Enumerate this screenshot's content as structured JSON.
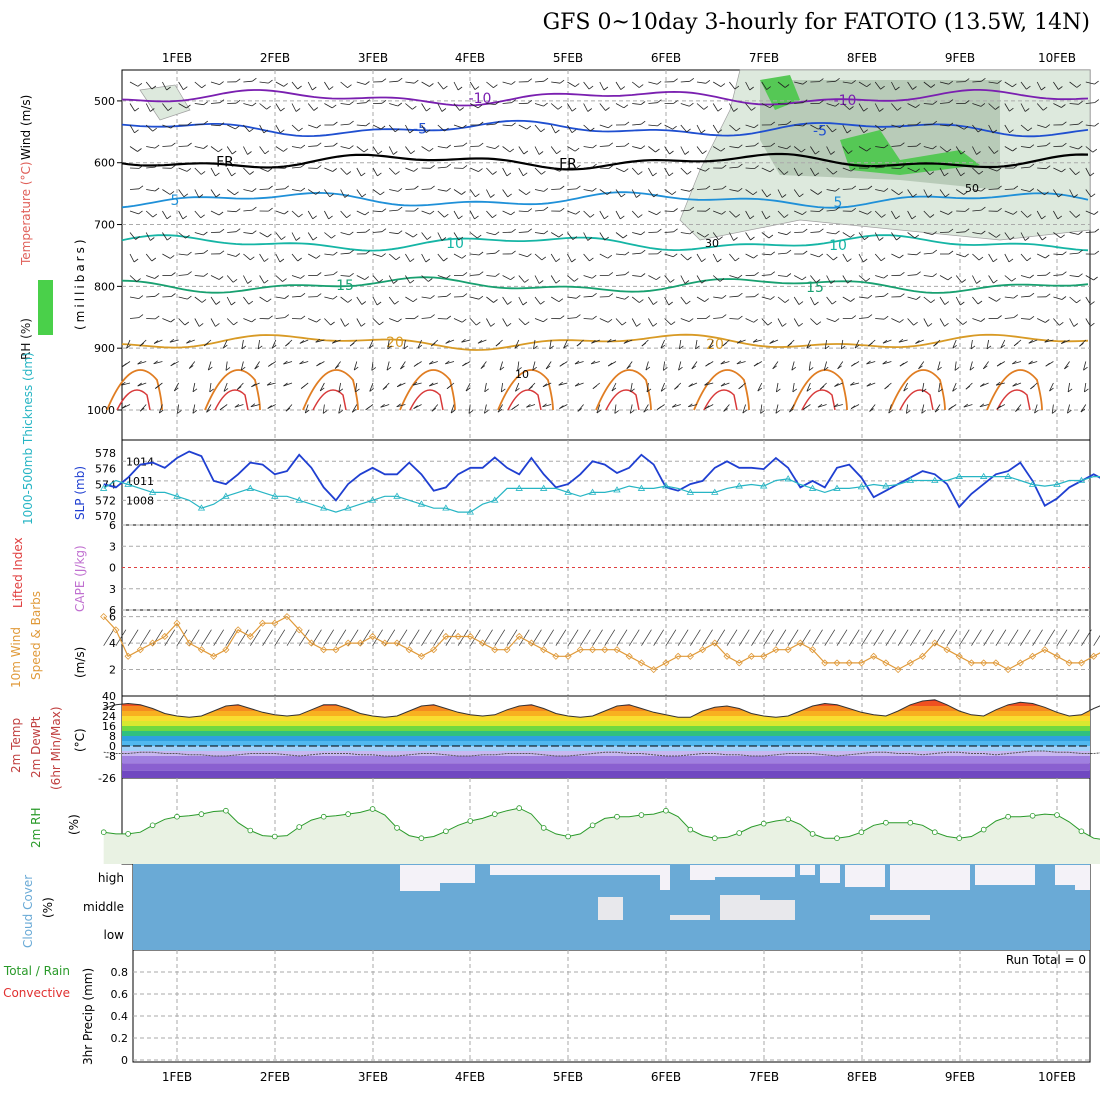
{
  "title": "GFS 0~10day 3-hourly for FATOTO (13.5W, 14N)",
  "dates": [
    "1FEB",
    "2FEB",
    "3FEB",
    "4FEB",
    "5FEB",
    "6FEB",
    "7FEB",
    "8FEB",
    "9FEB",
    "10FEB"
  ],
  "colors": {
    "axis": "#000000",
    "grid": "#aaaaaa",
    "slp": "#1f3fd1",
    "thickness": "#27b5c4",
    "wind10": "#e09a3a",
    "rh2m": "#2a9a2a",
    "cloud": "#6aaad6",
    "zero_li": "#e04040",
    "precip_conv": "#e03030"
  },
  "chart_data": [
    {
      "id": "upper-air",
      "type": "contour",
      "ylabel_parts": [
        "Wind (m/s)",
        "Temperature (°C)",
        "RH (%)"
      ],
      "ylabel_unit": "(millibars)",
      "y_ticks": [
        500,
        600,
        700,
        800,
        900,
        1000
      ],
      "ylim": [
        450,
        1000
      ],
      "isotherm_labels": [
        {
          "text": "-10",
          "level": 495,
          "color": "#7a1fb0"
        },
        {
          "text": "-5",
          "level": 545,
          "color": "#1f4fd0"
        },
        {
          "text": "FR",
          "level": 598,
          "color": "#000000"
        },
        {
          "text": "5",
          "level": 660,
          "color": "#1f90d8"
        },
        {
          "text": "10",
          "level": 730,
          "color": "#15b5a5"
        },
        {
          "text": "15",
          "level": 798,
          "color": "#18a070"
        },
        {
          "text": "20",
          "level": 890,
          "color": "#d89a25"
        }
      ],
      "rh_labels": [
        "30",
        "50",
        "10"
      ]
    },
    {
      "id": "slp-thickness",
      "type": "line",
      "ylabel_left": "1000-500mb Thickness (dm)",
      "ylabel_right": "SLP (mb)",
      "thickness_ticks": [
        570,
        572,
        574,
        576,
        578
      ],
      "slp_ticks": [
        1008,
        1011,
        1014
      ],
      "thickness_range": [
        569.5,
        579
      ],
      "slp_range": [
        1005,
        1016.5
      ],
      "series": [
        {
          "name": "SLP (mb)",
          "values": [
            1010.5,
            1010,
            1011.5,
            1013.5,
            1013.8,
            1013,
            1014.5,
            1015.5,
            1014.8,
            1011,
            1010.5,
            1012,
            1013.8,
            1013.5,
            1012,
            1012.5,
            1015,
            1013,
            1010,
            1008,
            1010.5,
            1012,
            1013,
            1012,
            1012,
            1013.8,
            1012,
            1009.5,
            1010,
            1012,
            1013,
            1013,
            1014.6,
            1013,
            1012,
            1014.5,
            1012,
            1010,
            1010.5,
            1012,
            1014,
            1013.5,
            1012.2,
            1013,
            1015,
            1013.5,
            1010,
            1009.5,
            1010.5,
            1011,
            1013,
            1014,
            1013,
            1013,
            1012.8,
            1014.5,
            1013,
            1010,
            1011,
            1010,
            1013,
            1013.5,
            1011.5,
            1008.5,
            1009.5,
            1010.5,
            1011.5,
            1012.5,
            1012,
            1010.5,
            1007,
            1009,
            1010.5,
            1012,
            1012.5,
            1013.8,
            1011,
            1007.2,
            1008.3,
            1010,
            1011,
            1012,
            1011,
            1009,
            1010,
            1010.5,
            1011,
            1010.5,
            1010,
            1012.5,
            1012.3,
            1012,
            1011,
            1007,
            1006.5,
            1007.7,
            1008,
            1006.5,
            1007.4,
            1009.5
          ]
        },
        {
          "name": "1000-500mb Thickness (dm)",
          "values": [
            573.5,
            574.5,
            574,
            573.5,
            573,
            573,
            572.5,
            572,
            571,
            571.5,
            572.5,
            573,
            573.5,
            573,
            572.5,
            572.5,
            572,
            571.5,
            571,
            570.5,
            571,
            571.5,
            572,
            572.5,
            572.5,
            572,
            571.5,
            571,
            571,
            570.5,
            570.5,
            571.5,
            572,
            573.5,
            573.5,
            573.5,
            573.5,
            573.5,
            573,
            572.5,
            573,
            573,
            573.3,
            573.8,
            573.5,
            573.5,
            573.8,
            573.5,
            573,
            573,
            573,
            573.5,
            573.8,
            574,
            573.8,
            574.5,
            574.7,
            574,
            573.5,
            573,
            573.5,
            573.5,
            573.7,
            574,
            573.8,
            574,
            574.5,
            574.5,
            574.5,
            574.5,
            575,
            575,
            575,
            575,
            575,
            574.5,
            574,
            573.8,
            574,
            574.5,
            574.5,
            575,
            575,
            575,
            575,
            574.5,
            574.5,
            574.8,
            574.5,
            574.5,
            575,
            576,
            577,
            577,
            576.5,
            576,
            575.5,
            575,
            574.5,
            574.5
          ]
        }
      ]
    },
    {
      "id": "li-cape",
      "type": "line",
      "ylabel_left": "Lifted Index",
      "ylabel_right": "CAPE (J/kg)",
      "y_ticks": [
        6,
        3,
        0,
        -3,
        -6
      ],
      "tick_labels": [
        "6",
        "3",
        "0",
        "3",
        "6"
      ],
      "ylim": [
        -6,
        6
      ]
    },
    {
      "id": "wind-10m",
      "type": "line",
      "ylabel_left": "10m Wind",
      "ylabel_mid": "Speed & Barbs",
      "ylabel_unit": "(m/s)",
      "y_ticks": [
        2,
        4,
        6
      ],
      "ylim": [
        0,
        6.5
      ],
      "series": [
        {
          "name": "Speed",
          "values": [
            6,
            5,
            3,
            3.5,
            4,
            4.5,
            5.5,
            4,
            3.5,
            3,
            3.5,
            5,
            4.5,
            5.5,
            5.5,
            6,
            5,
            4,
            3.5,
            3.5,
            4,
            4,
            4.5,
            4,
            4,
            3.5,
            3,
            3.5,
            4.5,
            4.5,
            4.5,
            4,
            3.5,
            3.5,
            4.5,
            4,
            3.5,
            3,
            3,
            3.5,
            3.5,
            3.5,
            3.5,
            3,
            2.5,
            2,
            2.5,
            3,
            3,
            3.5,
            4,
            3,
            2.5,
            3,
            3,
            3.5,
            3.5,
            4,
            3.5,
            2.5,
            2.5,
            2.5,
            2.5,
            3,
            2.5,
            2,
            2.5,
            3,
            4,
            3.5,
            3,
            2.5,
            2.5,
            2.5,
            2,
            2.5,
            3,
            3.5,
            3,
            2.5,
            2.5,
            3,
            3.5,
            5,
            4,
            3.5,
            3,
            2.5,
            3,
            2.5,
            2,
            2,
            2.5,
            3,
            3.5,
            3.5,
            2.5,
            2,
            0.5,
            0.5,
            1.5
          ]
        }
      ]
    },
    {
      "id": "temp-2m",
      "type": "area",
      "ylabel_parts": [
        "2m Temp",
        "2m DewPt",
        "(6hr Min/Max)"
      ],
      "ylabel_unit": "(°C)",
      "y_ticks": [
        40,
        32,
        24,
        16,
        8,
        0,
        -8,
        -26
      ],
      "ylim": [
        -26,
        40
      ],
      "series": [
        {
          "name": "2m Temp",
          "values": [
            30,
            33,
            34,
            33,
            30,
            26,
            24,
            23,
            24,
            28,
            32,
            33,
            30,
            27,
            25,
            24,
            25,
            29,
            33,
            33,
            30,
            26,
            24,
            23,
            24,
            28,
            32,
            33,
            30,
            27,
            25,
            24,
            25,
            29,
            32,
            33,
            30,
            26,
            24,
            23,
            24,
            28,
            32,
            33,
            30,
            27,
            25,
            23,
            23,
            28,
            31,
            32,
            30,
            26,
            24,
            23,
            24,
            28,
            32,
            34,
            33,
            30,
            27,
            25,
            24,
            28,
            33,
            36,
            37,
            33,
            28,
            25,
            24,
            29,
            33,
            35,
            34,
            31,
            27,
            24,
            25,
            30,
            34,
            38,
            37,
            33,
            28,
            25,
            24,
            27,
            30,
            28,
            27,
            25,
            24,
            24
          ]
        },
        {
          "name": "2m DewPt",
          "values": [
            -5,
            -6,
            -6,
            -5,
            -5,
            -6,
            -6,
            -7,
            -7,
            -8,
            -8,
            -7,
            -6,
            -6,
            -6,
            -7,
            -8,
            -7,
            -6,
            -6,
            -6,
            -7,
            -7,
            -8,
            -8,
            -7,
            -6,
            -6,
            -7,
            -8,
            -8,
            -7,
            -7,
            -6,
            -6,
            -6,
            -7,
            -8,
            -8,
            -7,
            -6,
            -5,
            -5,
            -6,
            -6,
            -7,
            -8,
            -8,
            -7,
            -6,
            -6,
            -7,
            -7,
            -8,
            -8,
            -7,
            -6,
            -6,
            -6,
            -7,
            -8,
            -7,
            -6,
            -5,
            -5,
            -6,
            -6,
            -7,
            -6,
            -5,
            -5,
            -6,
            -6,
            -7,
            -6,
            -5,
            -4,
            -4,
            -5,
            -5,
            -6,
            -6,
            -5,
            -4,
            -4,
            -4,
            -4,
            -5,
            -5,
            -5,
            -4,
            -4,
            -4,
            -4,
            -5,
            -5
          ]
        }
      ]
    },
    {
      "id": "rh-2m",
      "type": "line",
      "ylabel_left": "2m RH",
      "ylabel_unit": "(%)",
      "ylim": [
        0,
        100
      ],
      "series": [
        {
          "name": "2m RH",
          "values": [
            37,
            35,
            35,
            37,
            45,
            52,
            55,
            56,
            58,
            61,
            62,
            48,
            39,
            33,
            32,
            33,
            43,
            51,
            55,
            56,
            58,
            60,
            64,
            57,
            42,
            33,
            30,
            32,
            38,
            45,
            50,
            53,
            58,
            62,
            65,
            58,
            42,
            35,
            32,
            35,
            45,
            53,
            55,
            55,
            57,
            58,
            62,
            55,
            40,
            33,
            30,
            31,
            36,
            43,
            47,
            50,
            52,
            46,
            35,
            30,
            30,
            32,
            37,
            45,
            48,
            48,
            48,
            45,
            37,
            32,
            30,
            32,
            40,
            50,
            55,
            55,
            56,
            58,
            57,
            49,
            38,
            30,
            28,
            33,
            42,
            51,
            58,
            61,
            66,
            70,
            67,
            53,
            38,
            30,
            28,
            34,
            45,
            55,
            62,
            72
          ]
        }
      ]
    },
    {
      "id": "cloud-cover",
      "type": "area",
      "ylabel_left": "Cloud Cover",
      "ylabel_unit": "(%)",
      "levels": [
        "high",
        "middle",
        "low"
      ]
    },
    {
      "id": "precip",
      "type": "bar",
      "ylabel_left": "Total / Rain",
      "ylabel_left2": "Convective",
      "ylabel_right": "3hr Precip (mm)",
      "y_ticks": [
        0,
        0.2,
        0.4,
        0.6,
        0.8
      ],
      "ylim": [
        0,
        1
      ],
      "run_total": "Run Total = 0",
      "values": []
    }
  ]
}
